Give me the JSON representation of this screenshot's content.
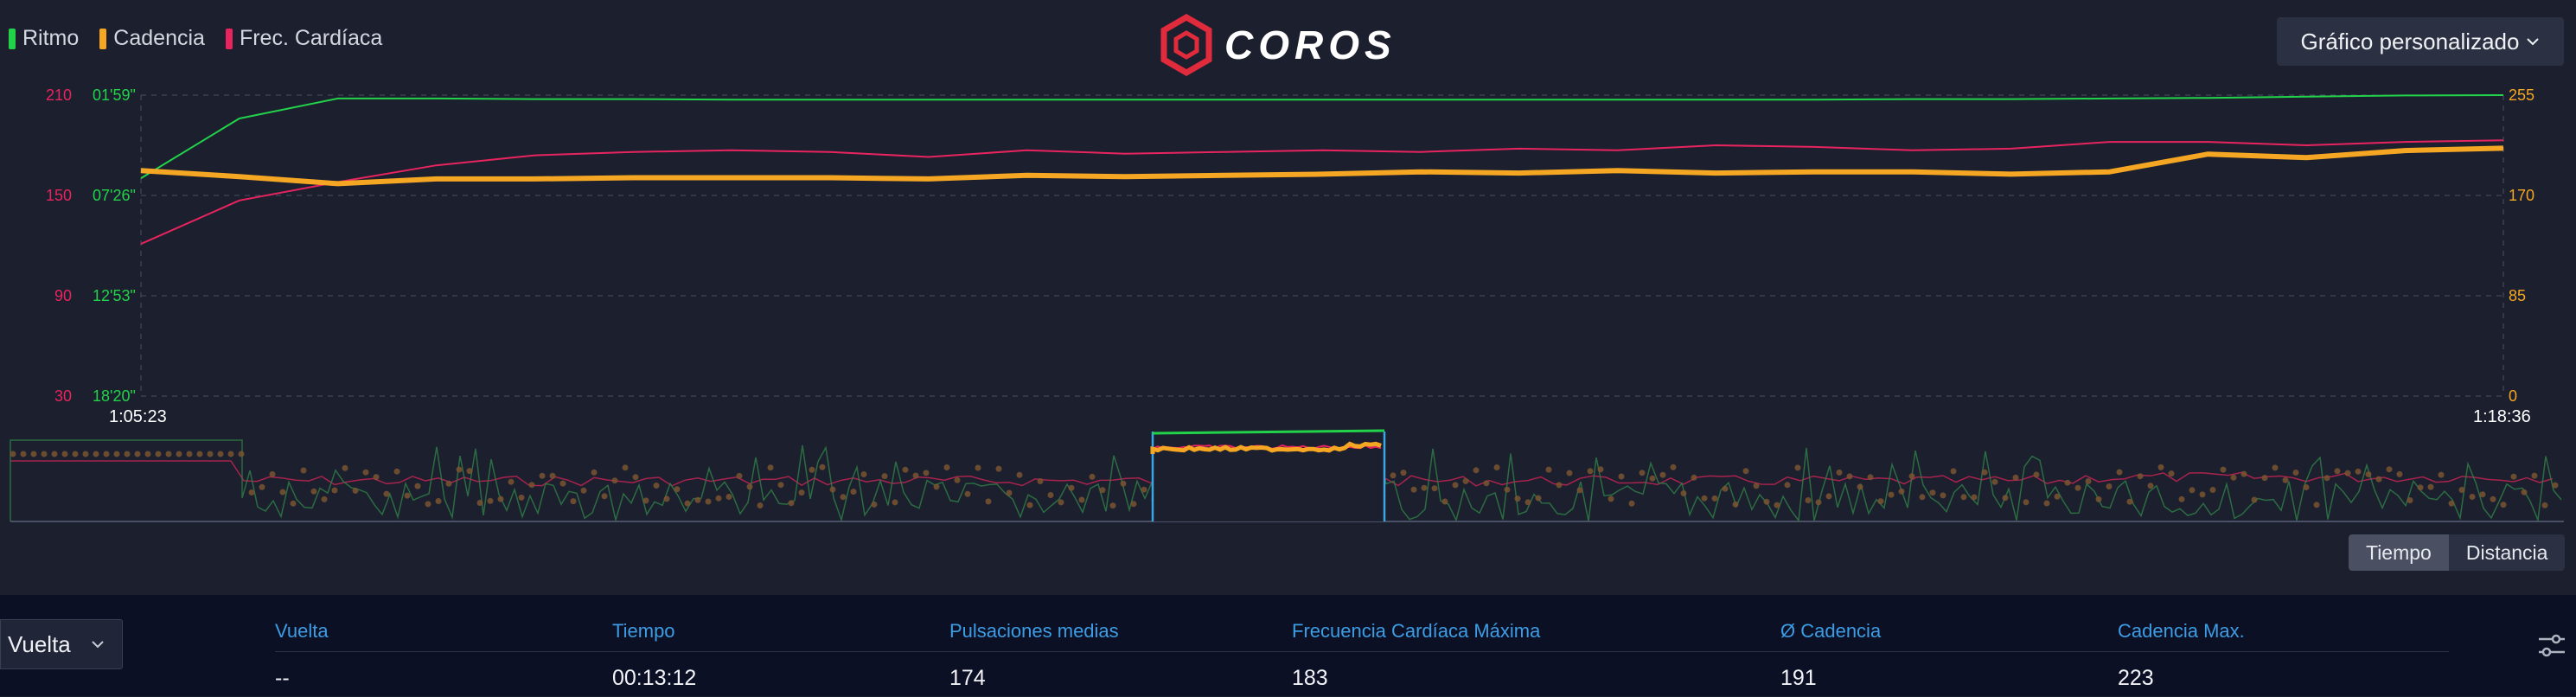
{
  "legend": [
    {
      "label": "Ritmo",
      "color": "#22d34a"
    },
    {
      "label": "Cadencia",
      "color": "#f5a623"
    },
    {
      "label": "Frec. Cardíaca",
      "color": "#e8245f"
    }
  ],
  "brand": {
    "name": "COROS",
    "icon": "hexagon-logo-icon",
    "color": "#e02b3c"
  },
  "chart_menu": {
    "label": "Gráfico personalizado",
    "icon": "chevron-down-icon"
  },
  "chart_data": {
    "type": "line",
    "x_start": "1:05:23",
    "x_end": "1:18:36",
    "axes": {
      "left_hr": {
        "ticks": [
          210,
          150,
          90,
          30
        ],
        "color": "#e8245f"
      },
      "left_pace": {
        "ticks": [
          "01'59\"",
          "07'26\"",
          "12'53\"",
          "18'20\""
        ],
        "color": "#22d34a"
      },
      "right_cadence": {
        "ticks": [
          255,
          170,
          85,
          0
        ],
        "color": "#f5a623"
      }
    },
    "grid": true,
    "series": [
      {
        "name": "Ritmo",
        "color": "#22d34a",
        "values": [
          "06'30\"",
          "03'15\"",
          "02'10\"",
          "02'10\"",
          "02'12\"",
          "02'12\"",
          "02'14\"",
          "02'14\"",
          "02'14\"",
          "02'14\"",
          "02'14\"",
          "02'14\"",
          "02'14\"",
          "02'14\"",
          "02'14\"",
          "02'14\"",
          "02'14\"",
          "02'14\"",
          "02'12\"",
          "02'12\"",
          "02'10\"",
          "02'08\"",
          "02'04\"",
          "02'00\"",
          "01'59\""
        ]
      },
      {
        "name": "Cadencia",
        "color": "#f5a623",
        "values": [
          191,
          186,
          180,
          184,
          184,
          185,
          185,
          185,
          184,
          187,
          186,
          187,
          188,
          190,
          189,
          191,
          189,
          190,
          190,
          188,
          190,
          205,
          202,
          208,
          210
        ]
      },
      {
        "name": "Frec. Cardíaca",
        "color": "#e8245f",
        "values": [
          121,
          147,
          158,
          168,
          174,
          176,
          177,
          176,
          173,
          177,
          175,
          176,
          177,
          176,
          178,
          177,
          180,
          179,
          177,
          178,
          182,
          182,
          180,
          182,
          183
        ]
      }
    ]
  },
  "overview": {
    "selected_label": "selected-lap"
  },
  "toggle": [
    {
      "label": "Tiempo",
      "active": true
    },
    {
      "label": "Distancia",
      "active": false
    }
  ],
  "lap_select": {
    "label": "Vuelta",
    "icon": "chevron-down-icon"
  },
  "stats": {
    "headers": [
      "Vuelta",
      "Tiempo",
      "Pulsaciones medias",
      "Frecuencia Cardíaca Máxima",
      "Ø Cadencia",
      "Cadencia Max."
    ],
    "values": [
      "--",
      "00:13:12",
      "174",
      "183",
      "191",
      "223"
    ]
  },
  "settings_icon": "sliders-icon"
}
